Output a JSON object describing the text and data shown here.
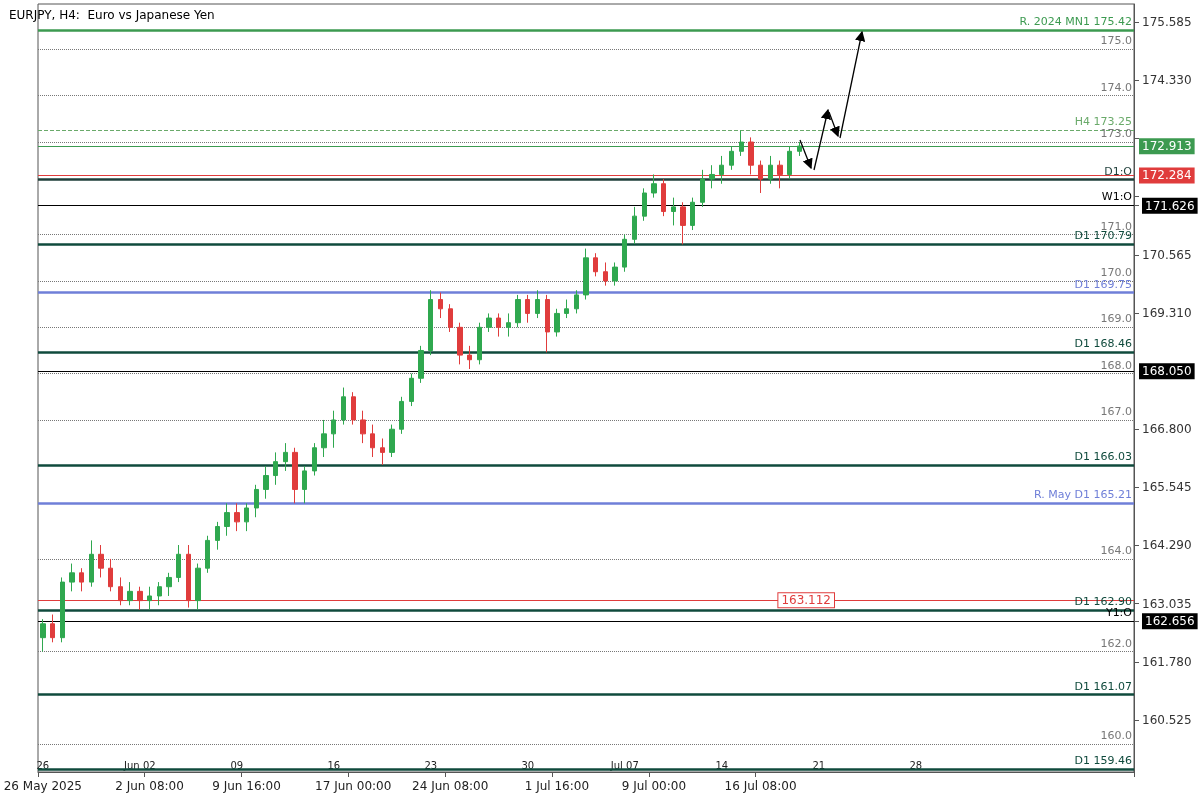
{
  "chart_data": {
    "type": "candlestick",
    "title": "EURJPY, H4:  Euro vs Japanese Yen",
    "categories": [
      "26 May 2025",
      null,
      null,
      null,
      null,
      null,
      null,
      null,
      null,
      null,
      null,
      "2 Jun 08:00",
      null,
      null,
      null,
      null,
      null,
      null,
      null,
      null,
      null,
      "9 Jun 16:00",
      null,
      null,
      null,
      null,
      null,
      null,
      null,
      null,
      null,
      null,
      "17 Jun 00:00",
      null,
      null,
      null,
      null,
      null,
      null,
      null,
      null,
      null,
      "24 Jun 08:00",
      null,
      null,
      null,
      null,
      null,
      null,
      null,
      null,
      null,
      null,
      "1 Jul 16:00",
      null,
      null,
      null,
      null,
      null,
      null,
      null,
      null,
      null,
      "9 Jul 00:00",
      null,
      null,
      null,
      null,
      null,
      null,
      null,
      null,
      null,
      null,
      "16 Jul 08:00",
      null,
      null,
      null,
      null,
      null,
      null,
      null,
      null,
      null,
      null,
      null,
      null,
      null,
      null,
      null,
      null,
      null,
      null,
      null,
      null,
      null,
      null,
      null,
      null,
      null,
      null,
      null,
      null,
      null,
      null,
      null,
      null,
      null,
      null,
      null,
      null,
      null,
      null
    ],
    "ohlc": [
      [
        162.3,
        162.7,
        162.0,
        162.6
      ],
      [
        162.6,
        162.8,
        162.2,
        162.3
      ],
      [
        162.3,
        163.6,
        162.2,
        163.5
      ],
      [
        163.5,
        163.9,
        163.3,
        163.7
      ],
      [
        163.7,
        163.8,
        163.3,
        163.5
      ],
      [
        163.5,
        164.4,
        163.4,
        164.1
      ],
      [
        164.1,
        164.3,
        163.6,
        163.8
      ],
      [
        163.8,
        164.0,
        163.3,
        163.4
      ],
      [
        163.4,
        163.6,
        163.0,
        163.1
      ],
      [
        163.1,
        163.5,
        163.0,
        163.3
      ],
      [
        163.3,
        163.4,
        162.9,
        163.1
      ],
      [
        163.1,
        163.4,
        162.9,
        163.2
      ],
      [
        163.2,
        163.5,
        163.0,
        163.4
      ],
      [
        163.4,
        163.7,
        163.2,
        163.6
      ],
      [
        163.6,
        164.3,
        163.5,
        164.1
      ],
      [
        164.1,
        164.3,
        162.95,
        163.1
      ],
      [
        163.1,
        163.9,
        162.9,
        163.8
      ],
      [
        163.8,
        164.5,
        163.7,
        164.4
      ],
      [
        164.4,
        164.8,
        164.2,
        164.7
      ],
      [
        164.7,
        165.2,
        164.5,
        165.0
      ],
      [
        165.0,
        165.2,
        164.6,
        164.8
      ],
      [
        164.8,
        165.2,
        164.6,
        165.1
      ],
      [
        165.1,
        165.6,
        164.9,
        165.5
      ],
      [
        165.5,
        166.0,
        165.3,
        165.8
      ],
      [
        165.8,
        166.3,
        165.6,
        166.1
      ],
      [
        166.1,
        166.5,
        165.9,
        166.3
      ],
      [
        166.3,
        166.4,
        165.2,
        165.5
      ],
      [
        165.5,
        166.0,
        165.2,
        165.9
      ],
      [
        165.9,
        166.5,
        165.8,
        166.4
      ],
      [
        166.4,
        167.0,
        166.2,
        166.7
      ],
      [
        166.7,
        167.2,
        166.4,
        167.0
      ],
      [
        167.0,
        167.7,
        166.9,
        167.5
      ],
      [
        167.5,
        167.6,
        166.9,
        167.0
      ],
      [
        167.0,
        167.2,
        166.5,
        166.7
      ],
      [
        166.7,
        166.9,
        166.2,
        166.4
      ],
      [
        166.4,
        166.6,
        166.03,
        166.3
      ],
      [
        166.3,
        166.9,
        166.2,
        166.8
      ],
      [
        166.8,
        167.5,
        166.7,
        167.4
      ],
      [
        167.4,
        168.0,
        167.3,
        167.9
      ],
      [
        167.9,
        168.6,
        167.8,
        168.5
      ],
      [
        168.5,
        169.8,
        168.4,
        169.6
      ],
      [
        169.6,
        169.75,
        169.2,
        169.4
      ],
      [
        169.4,
        169.5,
        168.9,
        169.0
      ],
      [
        169.0,
        169.1,
        168.2,
        168.4
      ],
      [
        168.4,
        168.6,
        168.1,
        168.3
      ],
      [
        168.3,
        169.1,
        168.2,
        169.0
      ],
      [
        169.0,
        169.3,
        168.9,
        169.2
      ],
      [
        169.2,
        169.3,
        168.8,
        169.0
      ],
      [
        169.0,
        169.3,
        168.8,
        169.1
      ],
      [
        169.1,
        169.7,
        169.0,
        169.6
      ],
      [
        169.6,
        169.7,
        169.1,
        169.3
      ],
      [
        169.3,
        169.8,
        169.2,
        169.6
      ],
      [
        169.6,
        169.7,
        168.46,
        168.9
      ],
      [
        168.9,
        169.4,
        168.8,
        169.3
      ],
      [
        169.3,
        169.6,
        169.2,
        169.4
      ],
      [
        169.4,
        169.8,
        169.3,
        169.7
      ],
      [
        169.7,
        170.7,
        169.6,
        170.5
      ],
      [
        170.5,
        170.6,
        170.1,
        170.2
      ],
      [
        170.2,
        170.4,
        169.9,
        170.0
      ],
      [
        170.0,
        170.4,
        169.9,
        170.3
      ],
      [
        170.3,
        171.0,
        170.2,
        170.9
      ],
      [
        170.9,
        171.6,
        170.8,
        171.4
      ],
      [
        171.4,
        172.0,
        171.3,
        171.9
      ],
      [
        171.9,
        172.3,
        171.8,
        172.1
      ],
      [
        172.1,
        172.2,
        171.4,
        171.5
      ],
      [
        171.5,
        171.8,
        171.2,
        171.6
      ],
      [
        171.6,
        171.7,
        170.79,
        171.2
      ],
      [
        171.2,
        171.8,
        171.1,
        171.7
      ],
      [
        171.7,
        172.4,
        171.6,
        172.2
      ],
      [
        172.2,
        172.5,
        172.0,
        172.3
      ],
      [
        172.3,
        172.7,
        172.1,
        172.5
      ],
      [
        172.5,
        172.9,
        172.4,
        172.8
      ],
      [
        172.8,
        173.25,
        172.7,
        173.0
      ],
      [
        173.0,
        173.1,
        172.3,
        172.5
      ],
      [
        172.5,
        172.6,
        171.9,
        172.2
      ],
      [
        172.2,
        172.7,
        172.1,
        172.5
      ],
      [
        172.5,
        172.6,
        172.0,
        172.3
      ],
      [
        172.3,
        172.9,
        172.2,
        172.8
      ],
      [
        172.8,
        173.0,
        172.7,
        172.913
      ],
      null,
      null,
      null,
      null,
      null,
      null,
      null,
      null,
      null,
      null,
      null,
      null,
      null,
      null,
      null,
      null,
      null,
      null,
      null,
      null,
      null,
      null,
      null,
      null,
      null,
      null,
      null,
      null,
      null,
      null,
      null,
      null,
      null,
      null
    ],
    "colors": [
      "#2fa84f",
      "#e03c3c",
      "#2fa84f",
      "#2fa84f",
      "#e03c3c",
      "#2fa84f",
      "#e03c3c",
      "#e03c3c",
      "#e03c3c",
      "#2fa84f",
      "#e03c3c",
      "#2fa84f",
      "#2fa84f",
      "#2fa84f",
      "#2fa84f",
      "#e03c3c",
      "#2fa84f",
      "#2fa84f",
      "#2fa84f",
      "#2fa84f",
      "#e03c3c",
      "#2fa84f",
      "#2fa84f",
      "#2fa84f",
      "#2fa84f",
      "#2fa84f",
      "#e03c3c",
      "#2fa84f",
      "#2fa84f",
      "#2fa84f",
      "#2fa84f",
      "#2fa84f",
      "#e03c3c",
      "#e03c3c",
      "#e03c3c",
      "#e03c3c",
      "#2fa84f",
      "#2fa84f",
      "#2fa84f",
      "#2fa84f",
      "#2fa84f",
      "#e03c3c",
      "#e03c3c",
      "#e03c3c",
      "#e03c3c",
      "#2fa84f",
      "#2fa84f",
      "#e03c3c",
      "#2fa84f",
      "#2fa84f",
      "#e03c3c",
      "#2fa84f",
      "#e03c3c",
      "#2fa84f",
      "#2fa84f",
      "#2fa84f",
      "#2fa84f",
      "#e03c3c",
      "#e03c3c",
      "#2fa84f",
      "#2fa84f",
      "#2fa84f",
      "#2fa84f",
      "#2fa84f",
      "#e03c3c",
      "#2fa84f",
      "#e03c3c",
      "#2fa84f",
      "#2fa84f",
      "#2fa84f",
      "#2fa84f",
      "#2fa84f",
      "#2fa84f",
      "#e03c3c",
      "#e03c3c",
      "#2fa84f",
      "#e03c3c",
      "#2fa84f",
      "#2fa84f",
      null,
      null,
      null,
      null,
      null,
      null,
      null,
      null,
      null,
      null,
      null,
      null,
      null,
      null,
      null,
      null,
      null,
      null,
      null,
      null,
      null,
      null,
      null,
      null,
      null,
      null,
      null,
      null,
      null,
      null,
      null,
      null,
      null,
      null
    ],
    "ylim": [
      159.4,
      175.98
    ],
    "yticks": [
      {
        "value": 160.525,
        "label": "160.525"
      },
      {
        "value": 161.78,
        "label": "161.780"
      },
      {
        "value": 162.656,
        "label": "162.656"
      },
      {
        "value": 163.035,
        "label": "163.035"
      },
      {
        "value": 164.29,
        "label": "164.290"
      },
      {
        "value": 165.545,
        "label": "165.545"
      },
      {
        "value": 166.8,
        "label": "166.800"
      },
      {
        "value": 169.31,
        "label": "169.310"
      },
      {
        "value": 170.565,
        "label": "170.565"
      },
      {
        "value": 171.626,
        "label": "171.626"
      },
      {
        "value": 171.82,
        "label": null
      },
      {
        "value": 173.075,
        "label": null
      },
      {
        "value": 174.33,
        "label": "174.330"
      },
      {
        "value": 175.585,
        "label": "175.585"
      }
    ],
    "grid": false,
    "annotations": [
      "26",
      "Jun 02",
      "09",
      "16",
      "23",
      "30",
      "Jul 07",
      "14",
      "21",
      "28"
    ],
    "ref_lines": [
      {
        "axis": "y",
        "value": 175.42,
        "label": "R. 2024 MN1 175.42",
        "color": "#3c9a50",
        "line_style": "solid"
      },
      {
        "axis": "y",
        "value": 173.25,
        "label": "H4 173.25",
        "color": "#6aaa6a",
        "line_style": "dashed"
      },
      {
        "axis": "y",
        "value": 172.913,
        "label": "172.913",
        "color": "#3c9a50",
        "line_style": "solid"
      },
      {
        "axis": "y",
        "value": 172.284,
        "label": "172.284",
        "color": "#e03c3c",
        "line_style": "solid"
      },
      {
        "axis": "y",
        "value": 172.19,
        "label": "D1:O",
        "color": "#1f3f3a",
        "line_style": "solid"
      },
      {
        "axis": "y",
        "value": 171.626,
        "label": "W1:O",
        "color": "#000000",
        "line_style": "solid"
      },
      {
        "axis": "y",
        "value": 170.79,
        "label": "D1 170.79",
        "color": "#0f4a3c",
        "line_style": "solid"
      },
      {
        "axis": "y",
        "value": 169.75,
        "label": "D1 169.75",
        "color": "#6f7fd8",
        "line_style": "solid"
      },
      {
        "axis": "y",
        "value": 168.46,
        "label": "D1 168.46",
        "color": "#0f4a3c",
        "line_style": "solid"
      },
      {
        "axis": "y",
        "value": 168.05,
        "label": "168.050",
        "color": "#000000",
        "line_style": "solid"
      },
      {
        "axis": "y",
        "value": 166.03,
        "label": "D1 166.03",
        "color": "#0f4a3c",
        "line_style": "solid"
      },
      {
        "axis": "y",
        "value": 165.21,
        "label": "R. May D1 165.21",
        "color": "#6f7fd8",
        "line_style": "solid"
      },
      {
        "axis": "y",
        "value": 163.112,
        "label": "163.112",
        "color": "#e03c3c",
        "line_style": "solid"
      },
      {
        "axis": "y",
        "value": 162.9,
        "label": "D1 162.90",
        "color": "#0f4a3c",
        "line_style": "solid"
      },
      {
        "axis": "y",
        "value": 162.656,
        "label": "Y1:O",
        "color": "#000000",
        "line_style": "solid"
      },
      {
        "axis": "y",
        "value": 161.07,
        "label": "D1 161.07",
        "color": "#0f4a3c",
        "line_style": "solid"
      },
      {
        "axis": "y",
        "value": 159.46,
        "label": "D1 159.46",
        "color": "#0f4a3c",
        "line_style": "solid"
      },
      {
        "axis": "y",
        "value": 175,
        "label": "175.0",
        "color": "#777777",
        "line_style": "dotted"
      },
      {
        "axis": "y",
        "value": 174,
        "label": "174.0",
        "color": "#777777",
        "line_style": "dotted"
      },
      {
        "axis": "y",
        "value": 173,
        "label": "173.0",
        "color": "#777777",
        "line_style": "dotted"
      },
      {
        "axis": "y",
        "value": 171,
        "label": "171.0",
        "color": "#777777",
        "line_style": "dotted"
      },
      {
        "axis": "y",
        "value": 170,
        "label": "170.0",
        "color": "#777777",
        "line_style": "dotted"
      },
      {
        "axis": "y",
        "value": 169,
        "label": "169.0",
        "color": "#777777",
        "line_style": "dotted"
      },
      {
        "axis": "y",
        "value": 168,
        "label": "168.0",
        "color": "#777777",
        "line_style": "dotted"
      },
      {
        "axis": "y",
        "value": 167,
        "label": "167.0",
        "color": "#777777",
        "line_style": "dotted"
      },
      {
        "axis": "y",
        "value": 164,
        "label": "164.0",
        "color": "#777777",
        "line_style": "dotted"
      },
      {
        "axis": "y",
        "value": 162,
        "label": "162.0",
        "color": "#777777",
        "line_style": "dotted"
      },
      {
        "axis": "y",
        "value": 160,
        "label": "160.0",
        "color": "#777777",
        "line_style": "dotted"
      }
    ]
  }
}
